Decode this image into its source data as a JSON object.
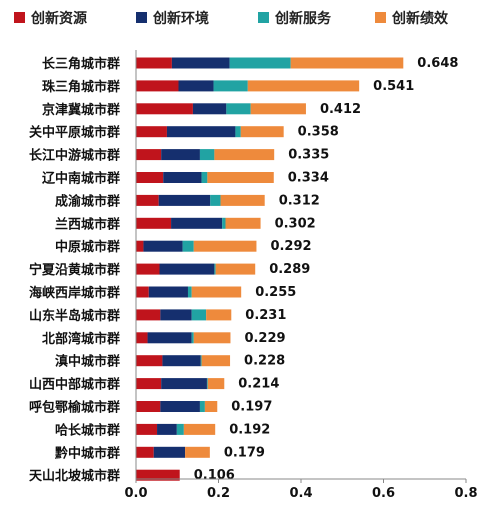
{
  "chart_data": {
    "type": "bar",
    "orientation": "horizontal",
    "stacked": true,
    "title": "",
    "xlabel": "",
    "ylabel": "",
    "xlim": [
      0,
      0.8
    ],
    "xticks": [
      "0.0",
      "0.2",
      "0.4",
      "0.6",
      "0.8"
    ],
    "grid": false,
    "legend_position": "top",
    "categories": [
      "长三角城市群",
      "珠三角城市群",
      "京津冀城市群",
      "关中平原城市群",
      "长江中游城市群",
      "辽中南城市群",
      "成渝城市群",
      "兰西城市群",
      "中原城市群",
      "宁夏沿黄城市群",
      "海峡西岸城市群",
      "山东半岛城市群",
      "北部湾城市群",
      "滇中城市群",
      "山西中部城市群",
      "呼包鄂榆城市群",
      "哈长城市群",
      "黔中城市群",
      "天山北坡城市群"
    ],
    "totals": [
      "0.648",
      "0.541",
      "0.412",
      "0.358",
      "0.335",
      "0.334",
      "0.312",
      "0.302",
      "0.292",
      "0.289",
      "0.255",
      "0.231",
      "0.229",
      "0.228",
      "0.214",
      "0.197",
      "0.192",
      "0.179",
      "0.106"
    ],
    "series": [
      {
        "name": "创新资源",
        "color": "#c0141c",
        "values": [
          0.087,
          0.103,
          0.138,
          0.075,
          0.061,
          0.066,
          0.055,
          0.085,
          0.018,
          0.057,
          0.031,
          0.059,
          0.028,
          0.064,
          0.061,
          0.059,
          0.051,
          0.043,
          0.106
        ]
      },
      {
        "name": "创新环境",
        "color": "#152f6e",
        "values": [
          0.14,
          0.085,
          0.081,
          0.166,
          0.094,
          0.093,
          0.125,
          0.124,
          0.095,
          0.133,
          0.095,
          0.076,
          0.107,
          0.093,
          0.111,
          0.096,
          0.048,
          0.076,
          0.0
        ]
      },
      {
        "name": "创新服务",
        "color": "#21a3a3",
        "values": [
          0.148,
          0.083,
          0.059,
          0.013,
          0.035,
          0.014,
          0.025,
          0.008,
          0.027,
          0.003,
          0.009,
          0.035,
          0.005,
          0.002,
          0.002,
          0.012,
          0.017,
          0.0,
          0.0
        ]
      },
      {
        "name": "创新绩效",
        "color": "#ee8a3c",
        "values": [
          0.273,
          0.27,
          0.134,
          0.104,
          0.145,
          0.161,
          0.107,
          0.085,
          0.152,
          0.096,
          0.12,
          0.061,
          0.089,
          0.069,
          0.04,
          0.03,
          0.076,
          0.06,
          0.0
        ]
      }
    ]
  }
}
